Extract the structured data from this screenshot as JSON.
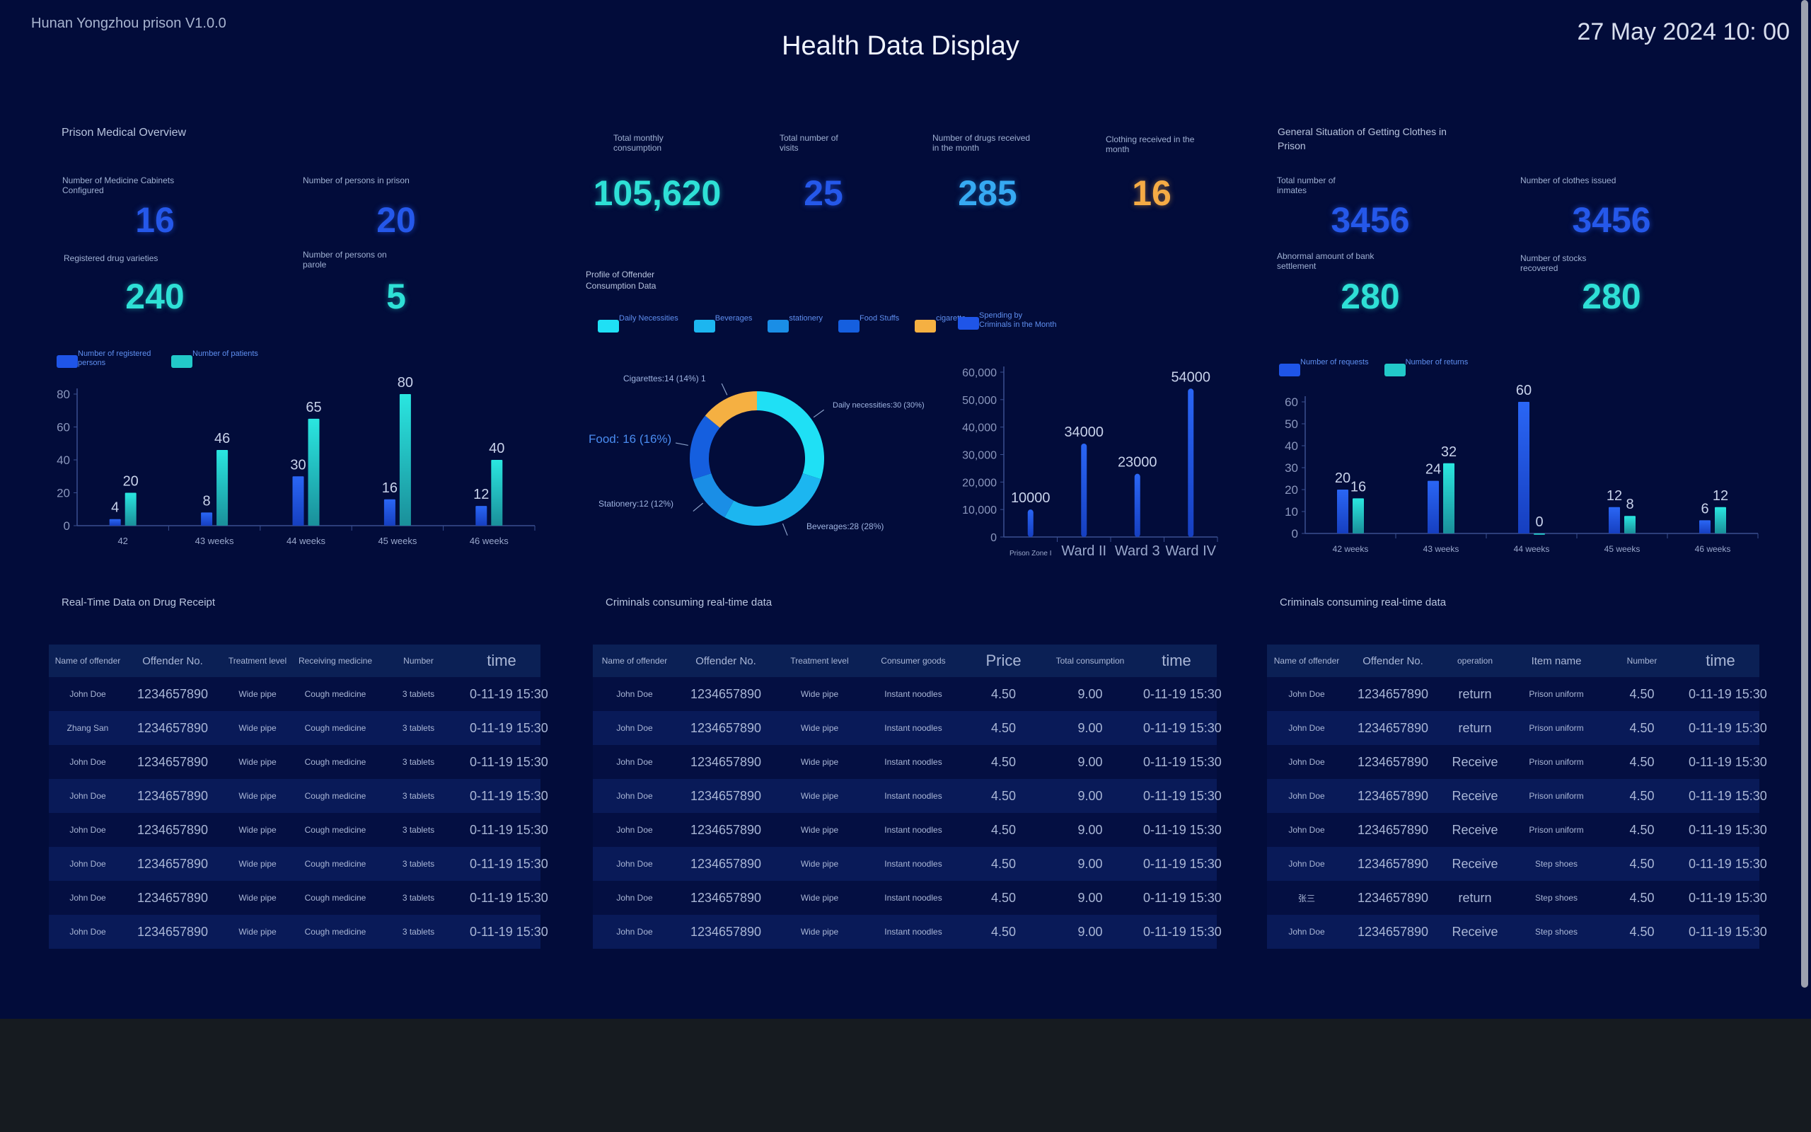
{
  "header": {
    "system": "Hunan Yongzhou prison V1.0.0",
    "title": "Health Data Display",
    "datetime": "27 May 2024 10: 00"
  },
  "medical": {
    "title": "Prison Medical Overview",
    "stats": [
      {
        "label": "Number of Medicine Cabinets Configured",
        "value": "16",
        "color": "blue"
      },
      {
        "label": "Number of persons in prison",
        "value": "20",
        "color": "blue"
      },
      {
        "label": "Registered drug varieties",
        "value": "240",
        "color": "cyan"
      },
      {
        "label": "Number of persons on parole",
        "value": "5",
        "color": "cyan"
      }
    ]
  },
  "consumption": {
    "stats": [
      {
        "label": "Total monthly consumption",
        "value": "105,620",
        "color": "cyan"
      },
      {
        "label": "Total number of visits",
        "value": "25",
        "color": "blue"
      },
      {
        "label": "Number of drugs received in the month",
        "value": "285",
        "color": "lblue"
      },
      {
        "label": "Clothing received in the month",
        "value": "16",
        "color": "orange"
      }
    ],
    "profile_title": "Profile of Offender Consumption Data"
  },
  "clothes": {
    "title": "General Situation of Getting Clothes in Prison",
    "stats": [
      {
        "label": "Total number of inmates",
        "value": "3456",
        "color": "blue"
      },
      {
        "label": "Number of clothes issued",
        "value": "3456",
        "color": "blue"
      },
      {
        "label": "Abnormal amount of bank settlement",
        "value": "280",
        "color": "cyan"
      },
      {
        "label": "Number of stocks recovered",
        "value": "280",
        "color": "cyan"
      }
    ]
  },
  "chart_data": [
    {
      "type": "bar",
      "categories": [
        "42",
        "43 weeks",
        "44 weeks",
        "45 weeks",
        "46 weeks"
      ],
      "series": [
        {
          "name": "Number of registered persons",
          "values": [
            4,
            8,
            30,
            16,
            12
          ],
          "color": "#1f55e8"
        },
        {
          "name": "Number of patients",
          "values": [
            20,
            46,
            65,
            80,
            40
          ],
          "color": "#22c9c9"
        }
      ],
      "ylim": [
        0,
        80
      ],
      "yticks": [
        0,
        20,
        40,
        60,
        80
      ],
      "legend": "top-left",
      "grid": false
    },
    {
      "type": "pie",
      "donut": true,
      "slices": [
        {
          "name": "Daily Necessities",
          "label": "Daily necessities:30 (30%)",
          "value": 30,
          "color": "#1fe0f5"
        },
        {
          "name": "Beverages",
          "label": "Beverages:28 (28%)",
          "value": 28,
          "color": "#1cb6f0"
        },
        {
          "name": "stationery",
          "label": "Stationery:12 (12%)",
          "value": 12,
          "color": "#1a8ee6"
        },
        {
          "name": "Food Stuffs",
          "label": "Food: 16 (16%)",
          "value": 16,
          "color": "#155fdf"
        },
        {
          "name": "cigarette",
          "label": "Cigarettes:14 (14%) 1",
          "value": 14,
          "color": "#f5b042"
        }
      ],
      "legend": "top"
    },
    {
      "type": "bar",
      "categories": [
        "Prison Zone I",
        "Ward II",
        "Ward 3",
        "Ward IV"
      ],
      "series": [
        {
          "name": "Spending by Criminals in the Month",
          "values": [
            10000,
            34000,
            23000,
            54000
          ],
          "color": "#1f55e8"
        }
      ],
      "ylim": [
        0,
        60000
      ],
      "yticks": [
        "0",
        "10,000",
        "20,000",
        "30,000",
        "40,000",
        "50,000",
        "60,000"
      ],
      "legend": "top-left",
      "grid": false
    },
    {
      "type": "bar",
      "categories": [
        "42 weeks",
        "43 weeks",
        "44 weeks",
        "45 weeks",
        "46 weeks"
      ],
      "series": [
        {
          "name": "Number of requests",
          "values": [
            20,
            24,
            60,
            12,
            6
          ],
          "color": "#1f55e8"
        },
        {
          "name": "Number of returns",
          "values": [
            16,
            32,
            0,
            8,
            12
          ],
          "color": "#22c9c9"
        }
      ],
      "ylim": [
        0,
        60
      ],
      "yticks": [
        0,
        10,
        20,
        30,
        40,
        50,
        60
      ],
      "legend": "top-left",
      "grid": false
    }
  ],
  "tables": [
    {
      "title": "Real-Time Data on Drug Receipt",
      "columns": [
        "Name of offender",
        "Offender No.",
        "Treatment level",
        "Receiving medicine",
        "Number",
        "time"
      ],
      "rows": [
        [
          "John Doe",
          "1234657890",
          "Wide pipe",
          "Cough medicine",
          "3 tablets",
          "0-11-19 15:30"
        ],
        [
          "Zhang San",
          "1234657890",
          "Wide pipe",
          "Cough medicine",
          "3 tablets",
          "0-11-19 15:30"
        ],
        [
          "John Doe",
          "1234657890",
          "Wide pipe",
          "Cough medicine",
          "3 tablets",
          "0-11-19 15:30"
        ],
        [
          "John Doe",
          "1234657890",
          "Wide pipe",
          "Cough medicine",
          "3 tablets",
          "0-11-19 15:30"
        ],
        [
          "John Doe",
          "1234657890",
          "Wide pipe",
          "Cough medicine",
          "3 tablets",
          "0-11-19 15:30"
        ],
        [
          "John Doe",
          "1234657890",
          "Wide pipe",
          "Cough medicine",
          "3 tablets",
          "0-11-19 15:30"
        ],
        [
          "John Doe",
          "1234657890",
          "Wide pipe",
          "Cough medicine",
          "3 tablets",
          "0-11-19 15:30"
        ],
        [
          "John Doe",
          "1234657890",
          "Wide pipe",
          "Cough medicine",
          "3 tablets",
          "0-11-19 15:30"
        ]
      ]
    },
    {
      "title": "Criminals consuming real-time data",
      "columns": [
        "Name of offender",
        "Offender No.",
        "Treatment level",
        "Consumer goods",
        "Price",
        "Total consumption",
        "time"
      ],
      "rows": [
        [
          "John Doe",
          "1234657890",
          "Wide pipe",
          "Instant noodles",
          "4.50",
          "9.00",
          "0-11-19 15:30"
        ],
        [
          "John Doe",
          "1234657890",
          "Wide pipe",
          "Instant noodles",
          "4.50",
          "9.00",
          "0-11-19 15:30"
        ],
        [
          "John Doe",
          "1234657890",
          "Wide pipe",
          "Instant noodles",
          "4.50",
          "9.00",
          "0-11-19 15:30"
        ],
        [
          "John Doe",
          "1234657890",
          "Wide pipe",
          "Instant noodles",
          "4.50",
          "9.00",
          "0-11-19 15:30"
        ],
        [
          "John Doe",
          "1234657890",
          "Wide pipe",
          "Instant noodles",
          "4.50",
          "9.00",
          "0-11-19 15:30"
        ],
        [
          "John Doe",
          "1234657890",
          "Wide pipe",
          "Instant noodles",
          "4.50",
          "9.00",
          "0-11-19 15:30"
        ],
        [
          "John Doe",
          "1234657890",
          "Wide pipe",
          "Instant noodles",
          "4.50",
          "9.00",
          "0-11-19 15:30"
        ],
        [
          "John Doe",
          "1234657890",
          "Wide pipe",
          "Instant noodles",
          "4.50",
          "9.00",
          "0-11-19 15:30"
        ]
      ]
    },
    {
      "title": "Criminals consuming real-time data",
      "columns": [
        "Name of offender",
        "Offender No.",
        "operation",
        "Item name",
        "Number",
        "time"
      ],
      "rows": [
        [
          "John Doe",
          "1234657890",
          "return",
          "Prison uniform",
          "4.50",
          "0-11-19 15:30"
        ],
        [
          "John Doe",
          "1234657890",
          "return",
          "Prison uniform",
          "4.50",
          "0-11-19 15:30"
        ],
        [
          "John Doe",
          "1234657890",
          "Receive",
          "Prison uniform",
          "4.50",
          "0-11-19 15:30"
        ],
        [
          "John Doe",
          "1234657890",
          "Receive",
          "Prison uniform",
          "4.50",
          "0-11-19 15:30"
        ],
        [
          "John Doe",
          "1234657890",
          "Receive",
          "Prison uniform",
          "4.50",
          "0-11-19 15:30"
        ],
        [
          "John Doe",
          "1234657890",
          "Receive",
          "Step shoes",
          "4.50",
          "0-11-19 15:30"
        ],
        [
          "张三",
          "1234657890",
          "return",
          "Step shoes",
          "4.50",
          "0-11-19 15:30"
        ],
        [
          "John Doe",
          "1234657890",
          "Receive",
          "Step shoes",
          "4.50",
          "0-11-19 15:30"
        ]
      ]
    }
  ]
}
